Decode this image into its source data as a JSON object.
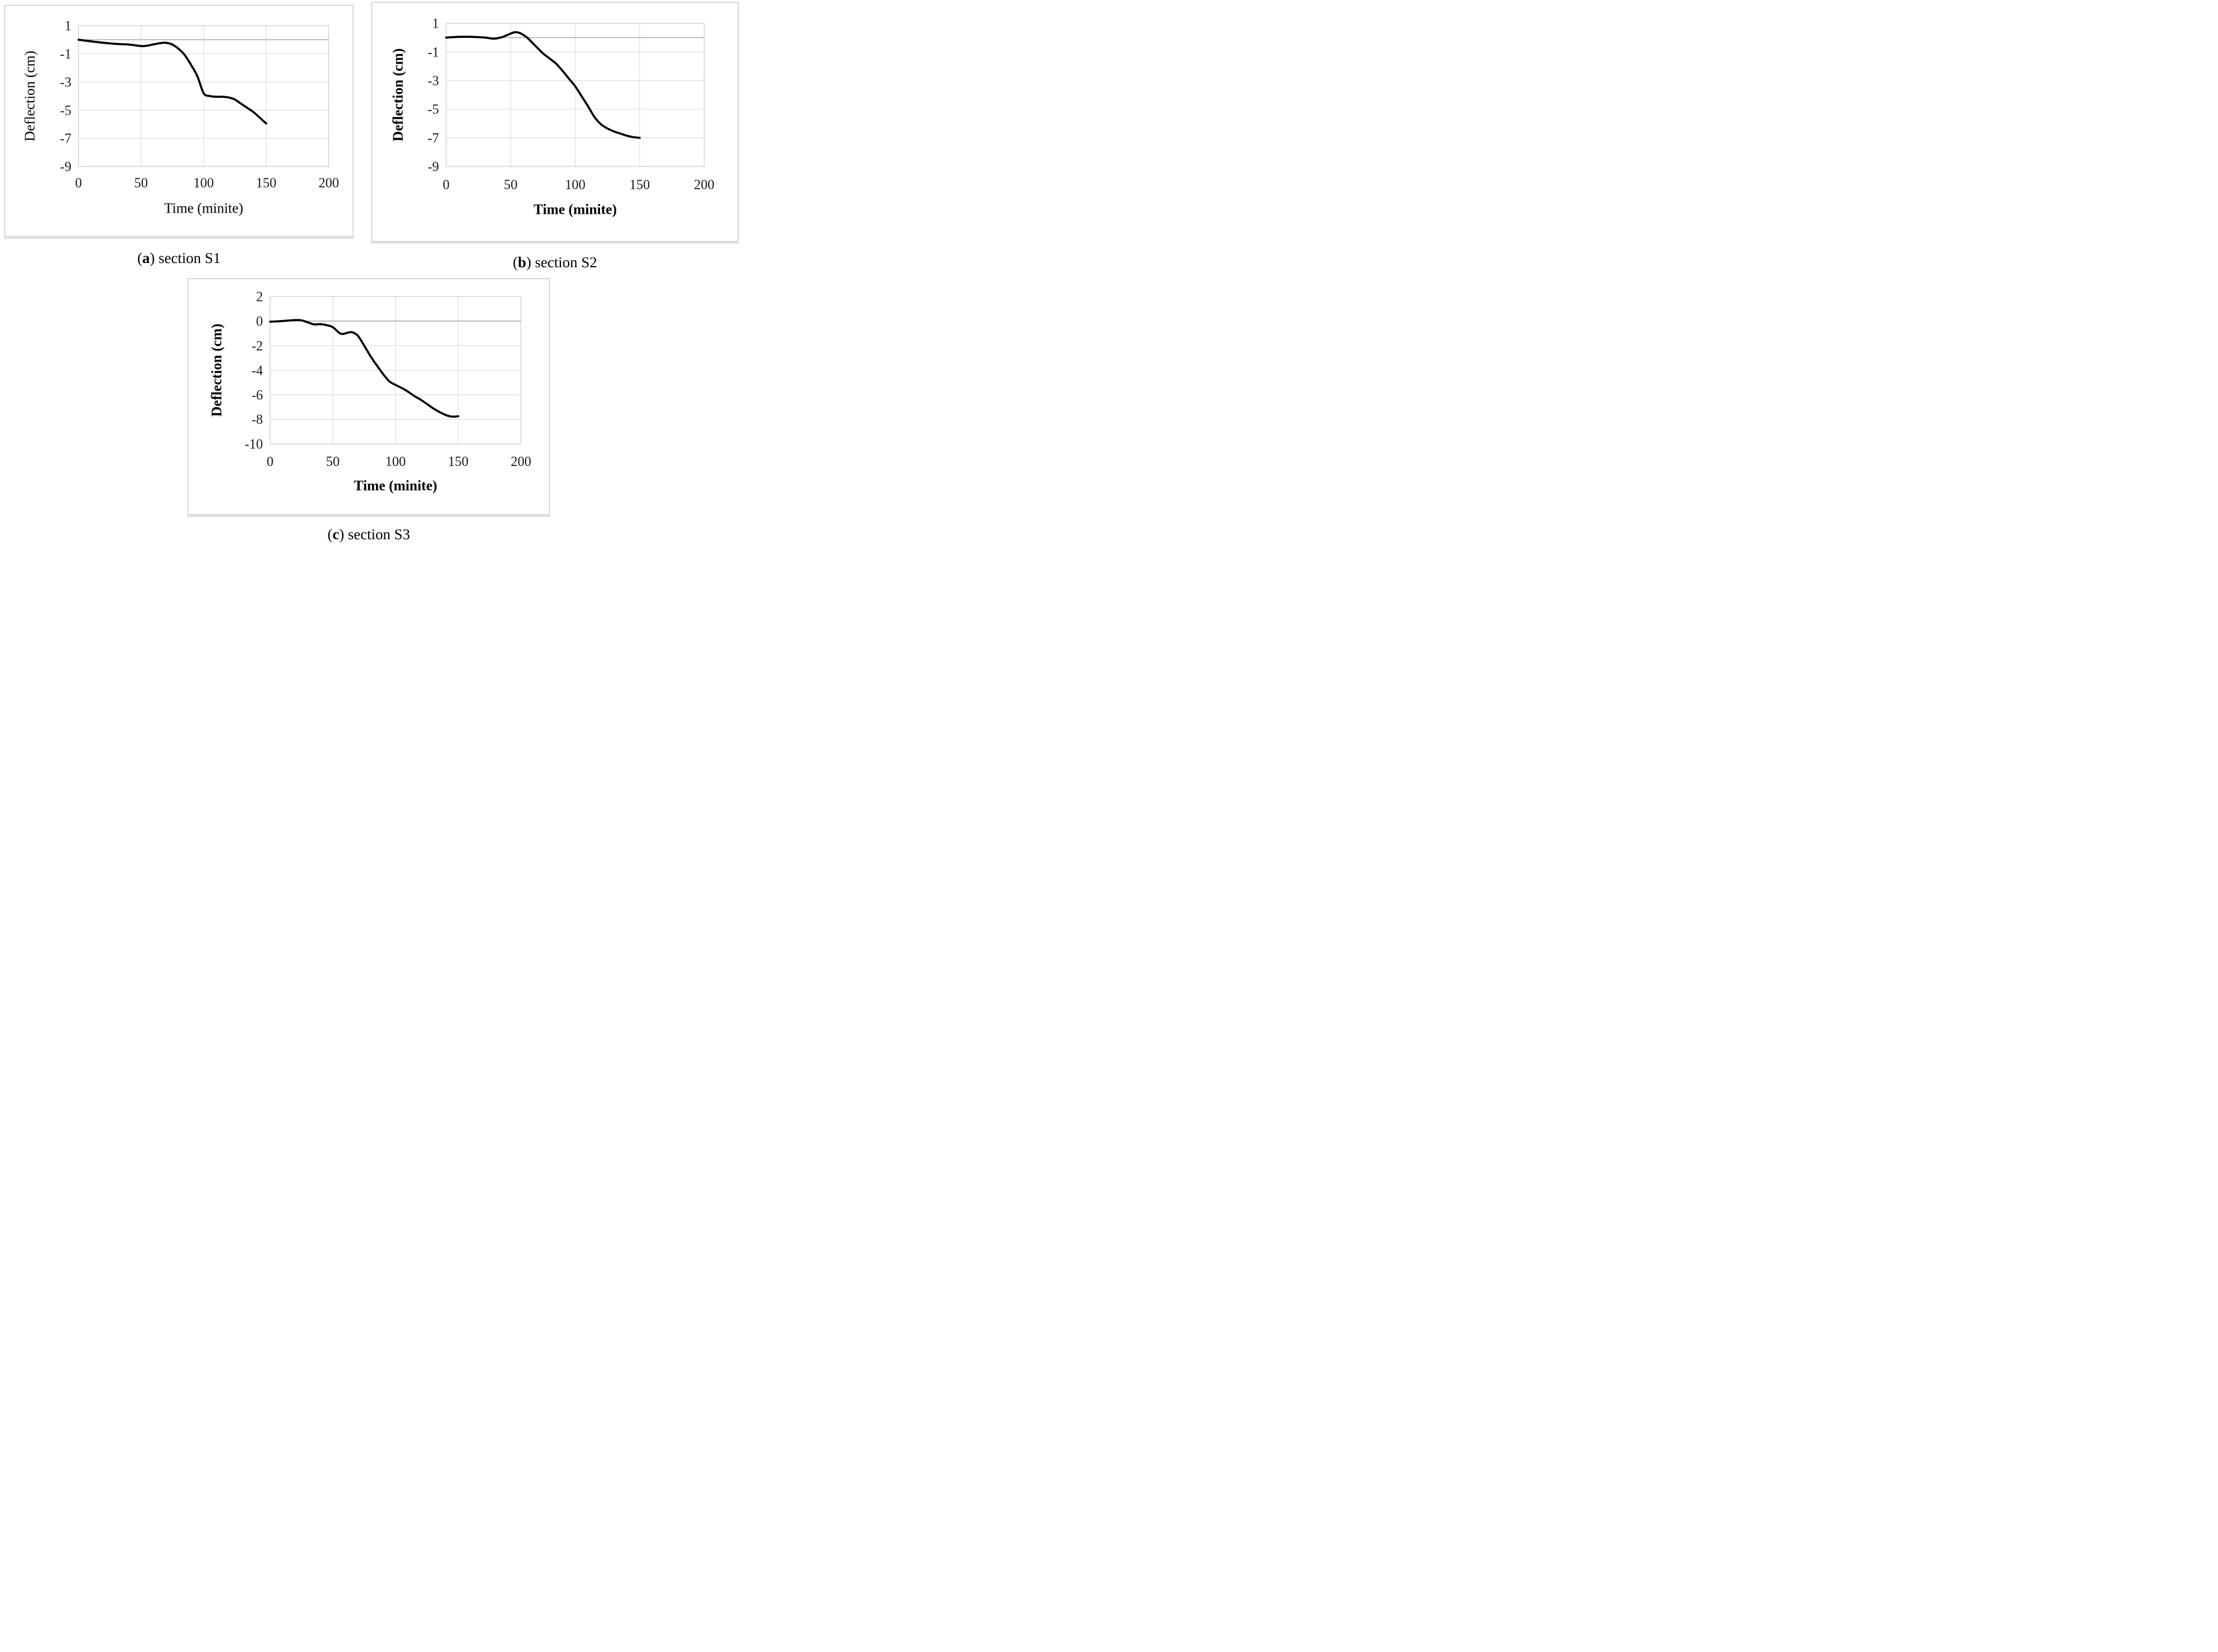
{
  "figure": {
    "panels": [
      {
        "id": "s1",
        "caption": {
          "pre": "(",
          "letter": "a",
          "post": ")",
          "rest": " section S1"
        }
      },
      {
        "id": "s2",
        "caption": {
          "pre": "(",
          "letter": "b",
          "post": ")",
          "rest": " section S2"
        }
      },
      {
        "id": "s3",
        "caption": {
          "pre": "(",
          "letter": "c",
          "post": ")",
          "rest": " section S3"
        }
      }
    ]
  },
  "colors": {
    "curve": "#000000",
    "gridline": "#d9d9d9",
    "zero_axis_line": "#a6a6a6",
    "plot_border": "#d0d0d0",
    "panel_border": "#d9d9d9",
    "text": "#000000"
  },
  "chart_data": [
    {
      "type": "line",
      "title": "",
      "xlabel": "Time (minite)",
      "ylabel": "Deflection (cm)",
      "bold_axis_labels": false,
      "grid": true,
      "zero_axis_line": true,
      "legend": "none",
      "xlim": [
        0,
        200
      ],
      "ylim": [
        -9,
        1
      ],
      "xticks": [
        0,
        50,
        100,
        150,
        200
      ],
      "yticks": [
        1,
        -1,
        -3,
        -5,
        -7,
        -9
      ],
      "series": [
        {
          "name": "Section S1 deflection",
          "points": [
            [
              0,
              0
            ],
            [
              10,
              -0.12
            ],
            [
              20,
              -0.22
            ],
            [
              30,
              -0.3
            ],
            [
              40,
              -0.34
            ],
            [
              50,
              -0.45
            ],
            [
              55,
              -0.42
            ],
            [
              60,
              -0.33
            ],
            [
              65,
              -0.25
            ],
            [
              70,
              -0.22
            ],
            [
              75,
              -0.35
            ],
            [
              80,
              -0.65
            ],
            [
              85,
              -1.1
            ],
            [
              90,
              -1.8
            ],
            [
              95,
              -2.6
            ],
            [
              100,
              -3.8
            ],
            [
              105,
              -4.0
            ],
            [
              110,
              -4.05
            ],
            [
              115,
              -4.05
            ],
            [
              120,
              -4.1
            ],
            [
              125,
              -4.25
            ],
            [
              130,
              -4.55
            ],
            [
              135,
              -4.85
            ],
            [
              140,
              -5.15
            ],
            [
              145,
              -5.55
            ],
            [
              150,
              -5.95
            ]
          ]
        }
      ]
    },
    {
      "type": "line",
      "title": "",
      "xlabel": "Time (minite)",
      "ylabel": "Deflection (cm)",
      "bold_axis_labels": true,
      "grid": true,
      "zero_axis_line": true,
      "legend": "none",
      "xlim": [
        0,
        200
      ],
      "ylim": [
        -9,
        1
      ],
      "xticks": [
        0,
        50,
        100,
        150,
        200
      ],
      "yticks": [
        1,
        -1,
        -3,
        -5,
        -7,
        -9
      ],
      "series": [
        {
          "name": "Section S2 deflection",
          "points": [
            [
              0,
              0
            ],
            [
              10,
              0.05
            ],
            [
              20,
              0.05
            ],
            [
              30,
              0
            ],
            [
              37,
              -0.08
            ],
            [
              43,
              0.02
            ],
            [
              48,
              0.2
            ],
            [
              53,
              0.37
            ],
            [
              57,
              0.32
            ],
            [
              62,
              0.05
            ],
            [
              65,
              -0.2
            ],
            [
              70,
              -0.65
            ],
            [
              75,
              -1.1
            ],
            [
              80,
              -1.45
            ],
            [
              85,
              -1.8
            ],
            [
              90,
              -2.3
            ],
            [
              95,
              -2.85
            ],
            [
              100,
              -3.4
            ],
            [
              105,
              -4.1
            ],
            [
              110,
              -4.8
            ],
            [
              115,
              -5.55
            ],
            [
              120,
              -6.05
            ],
            [
              125,
              -6.35
            ],
            [
              130,
              -6.55
            ],
            [
              135,
              -6.7
            ],
            [
              140,
              -6.85
            ],
            [
              145,
              -6.95
            ],
            [
              150,
              -7.0
            ]
          ]
        }
      ]
    },
    {
      "type": "line",
      "title": "",
      "xlabel": "Time (minite)",
      "ylabel": "Deflection (cm)",
      "bold_axis_labels": true,
      "grid": true,
      "zero_axis_line": true,
      "legend": "none",
      "xlim": [
        0,
        200
      ],
      "ylim": [
        -10,
        2
      ],
      "xticks": [
        0,
        50,
        100,
        150,
        200
      ],
      "yticks": [
        2,
        0,
        -2,
        -4,
        -6,
        -8,
        -10
      ],
      "series": [
        {
          "name": "Section S3 deflection",
          "points": [
            [
              0,
              -0.05
            ],
            [
              10,
              0
            ],
            [
              20,
              0.08
            ],
            [
              25,
              0.06
            ],
            [
              30,
              -0.1
            ],
            [
              35,
              -0.27
            ],
            [
              40,
              -0.25
            ],
            [
              45,
              -0.33
            ],
            [
              50,
              -0.5
            ],
            [
              55,
              -0.95
            ],
            [
              58,
              -1.05
            ],
            [
              63,
              -0.92
            ],
            [
              66,
              -0.93
            ],
            [
              70,
              -1.2
            ],
            [
              75,
              -2.0
            ],
            [
              80,
              -2.85
            ],
            [
              85,
              -3.6
            ],
            [
              90,
              -4.3
            ],
            [
              95,
              -4.9
            ],
            [
              100,
              -5.2
            ],
            [
              105,
              -5.45
            ],
            [
              110,
              -5.75
            ],
            [
              115,
              -6.1
            ],
            [
              120,
              -6.4
            ],
            [
              125,
              -6.75
            ],
            [
              130,
              -7.1
            ],
            [
              135,
              -7.4
            ],
            [
              140,
              -7.65
            ],
            [
              145,
              -7.78
            ],
            [
              150,
              -7.75
            ]
          ]
        }
      ]
    }
  ]
}
